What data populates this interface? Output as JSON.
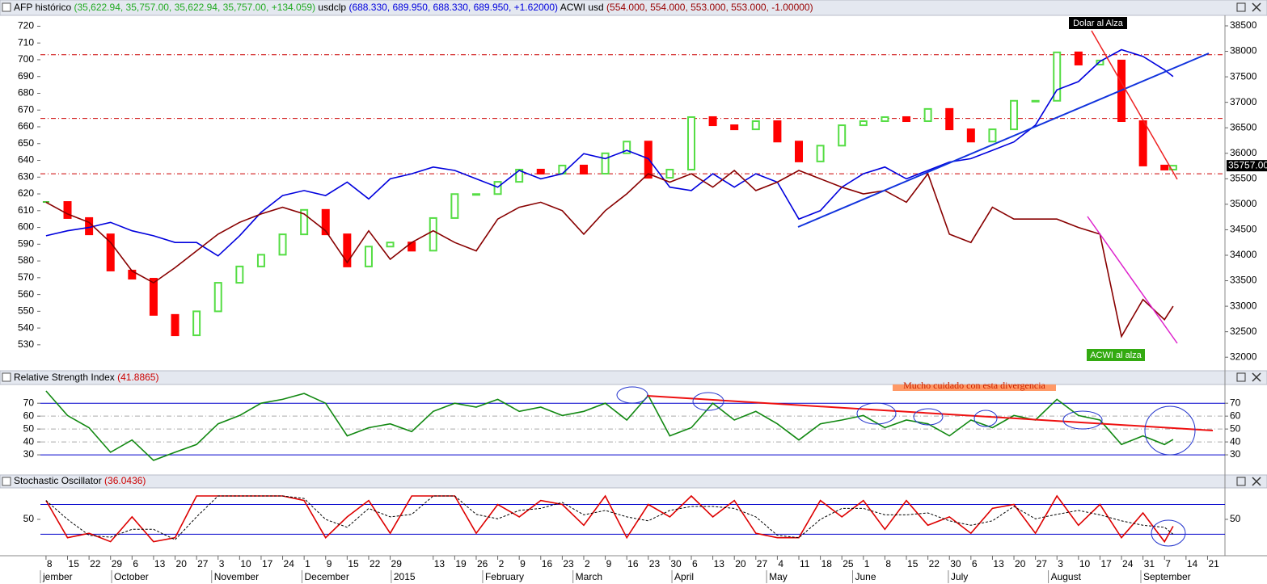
{
  "chart_data": [
    {
      "type": "line",
      "series": [
        {
          "name": "AFP histórico",
          "legend_values": "(35,622.94, 35,757.00, 35,622.94, 35,757.00, +134.059)",
          "style": "step-bars",
          "axis": "y2",
          "color": "#44bb33",
          "up_color": "#55dd44",
          "down_color": "#ff0000",
          "last_label": "35757.00",
          "values": [
            35045,
            34730,
            34410,
            33700,
            33540,
            32830,
            32430,
            32900,
            33460,
            33780,
            34010,
            34410,
            34890,
            34410,
            33780,
            34170,
            34250,
            34090,
            34730,
            35200,
            35200,
            35440,
            35680,
            35600,
            35760,
            35600,
            36000,
            36230,
            35520,
            35680,
            36710,
            36550,
            36470,
            36630,
            36230,
            35840,
            36150,
            36550,
            36630,
            36710,
            36630,
            36870,
            36470,
            36230,
            36470,
            37030,
            37030,
            37980,
            37740,
            37820,
            36630,
            35760,
            35680,
            35757
          ]
        },
        {
          "name": "usdclp",
          "legend_values": "(688.330, 689.950, 688.330, 689.950, +1.62000)",
          "color": "#0000dd",
          "values": [
            595,
            598,
            600,
            603,
            598,
            595,
            591,
            591,
            583,
            595,
            609,
            619,
            622,
            619,
            627,
            617,
            629,
            632,
            636,
            634,
            629,
            624,
            634,
            629,
            632,
            644,
            641,
            646,
            641,
            624,
            622,
            632,
            624,
            632,
            627,
            605,
            610,
            624,
            632,
            636,
            629,
            634,
            639,
            641,
            646,
            651,
            661,
            682,
            687,
            699,
            706,
            702,
            694,
            689.95
          ]
        },
        {
          "name": "ACWI usd",
          "legend_values": "(554.000, 554.000, 553.000, 553.000, -1.00000)",
          "color": "#880000",
          "values": [
            615,
            608,
            603,
            591,
            574,
            567,
            576,
            586,
            596,
            603,
            608,
            612,
            608,
            598,
            579,
            598,
            581,
            591,
            598,
            591,
            586,
            605,
            612,
            615,
            610,
            596,
            610,
            620,
            632,
            627,
            632,
            624,
            634,
            622,
            627,
            634,
            629,
            624,
            620,
            622,
            615,
            632,
            596,
            591,
            612,
            605,
            605,
            605,
            600,
            596,
            535,
            557,
            545,
            553
          ]
        }
      ],
      "x": [
        0,
        1,
        2,
        3,
        4,
        5,
        6,
        7,
        8,
        9,
        10,
        11,
        12,
        13,
        14,
        15,
        16,
        17,
        18,
        19,
        20,
        21,
        22,
        23,
        24,
        25,
        26,
        27,
        28,
        29,
        30,
        31,
        32,
        33,
        34,
        35,
        36,
        37,
        38,
        39,
        40,
        41,
        42,
        43,
        44,
        45,
        46,
        47,
        48,
        49,
        50,
        51,
        52,
        52.4
      ],
      "xlim": [
        -0.26,
        54.81
      ],
      "ylim": [
        515,
        726
      ],
      "yticks": [
        530,
        540,
        550,
        560,
        570,
        580,
        590,
        600,
        610,
        620,
        630,
        640,
        650,
        660,
        670,
        680,
        690,
        700,
        710,
        720
      ],
      "y2lim": [
        31750,
        38690
      ],
      "y2ticks": [
        32000,
        32500,
        33000,
        33500,
        34000,
        34500,
        35000,
        35500,
        36000,
        36500,
        37000,
        37500,
        38000,
        38500
      ],
      "reference_lines": [
        {
          "values": [
            703,
            665,
            632
          ],
          "color": "#cc0000",
          "dashed": true
        }
      ],
      "annotations": [
        "Dolar al Alza",
        "ACWI al alza"
      ]
    },
    {
      "type": "line",
      "title": "Relative Strength Index",
      "title_value": "(41.8865)",
      "series": [
        {
          "color": "#118811",
          "values": [
            79.5,
            60.5,
            51,
            32,
            41.5,
            25.7,
            32,
            38,
            54,
            60.5,
            70,
            73,
            77.6,
            70,
            44.7,
            51,
            54,
            48,
            63.7,
            70,
            67,
            73,
            63.7,
            67,
            60.5,
            63.7,
            70,
            57,
            76,
            44.7,
            51,
            70,
            57,
            63.7,
            54,
            41.5,
            54,
            57,
            60.5,
            51,
            57,
            54,
            44.7,
            57,
            51,
            60.5,
            57,
            73,
            60.5,
            57,
            38,
            44.7,
            38,
            41.8865
          ]
        }
      ],
      "x": [
        0,
        1,
        2,
        3,
        4,
        5,
        6,
        7,
        8,
        9,
        10,
        11,
        12,
        13,
        14,
        15,
        16,
        17,
        18,
        19,
        20,
        21,
        22,
        23,
        24,
        25,
        26,
        27,
        28,
        29,
        30,
        31,
        32,
        33,
        34,
        35,
        36,
        37,
        38,
        39,
        40,
        41,
        42,
        43,
        44,
        45,
        46,
        47,
        48,
        49,
        50,
        51,
        52,
        52.4
      ],
      "xlim": [
        -0.26,
        54.81
      ],
      "ylim": [
        19.4,
        83.9
      ],
      "yticks": [
        30,
        40,
        50,
        60,
        70
      ],
      "reference_lines": [
        {
          "values": [
            70,
            30
          ],
          "color": "#0000cc",
          "dashed": false
        },
        {
          "values": [
            60,
            50,
            40
          ],
          "color": "#aaaaaa",
          "dashed": true
        }
      ],
      "annotations": [
        "Mucho cuidado con esta divergencia"
      ]
    },
    {
      "type": "line",
      "title": "Stochastic Oscillator",
      "title_value": "(36.0436)",
      "series": [
        {
          "color": "#dd0000",
          "values": [
            88,
            13,
            22,
            5,
            55,
            5,
            13,
            97,
            97,
            97,
            97,
            97,
            88,
            13,
            55,
            88,
            22,
            97,
            97,
            97,
            22,
            80,
            55,
            88,
            80,
            38,
            97,
            13,
            80,
            55,
            97,
            55,
            88,
            22,
            13,
            13,
            88,
            55,
            88,
            30,
            88,
            38,
            55,
            22,
            72,
            80,
            22,
            97,
            38,
            80,
            13,
            63,
            5,
            36.0436
          ]
        },
        {
          "color": "#000000",
          "dashed": true,
          "values": [
            88,
            50,
            18,
            14,
            30,
            30,
            9,
            55,
            97,
            97,
            97,
            97,
            92,
            50,
            34,
            72,
            55,
            60,
            97,
            97,
            60,
            51,
            68,
            72,
            84,
            59,
            68,
            55,
            47,
            68,
            76,
            76,
            72,
            55,
            18,
            13,
            50,
            72,
            72,
            59,
            59,
            63,
            47,
            38,
            47,
            76,
            51,
            60,
            68,
            59,
            47,
            38,
            34,
            20
          ]
        }
      ],
      "x": [
        0,
        1,
        2,
        3,
        4,
        5,
        6,
        7,
        8,
        9,
        10,
        11,
        12,
        13,
        14,
        15,
        16,
        17,
        18,
        19,
        20,
        21,
        22,
        23,
        24,
        25,
        26,
        27,
        28,
        29,
        30,
        31,
        32,
        33,
        34,
        35,
        36,
        37,
        38,
        39,
        40,
        41,
        42,
        43,
        44,
        45,
        46,
        47,
        48,
        49,
        50,
        51,
        52,
        52.4
      ],
      "xlim": [
        -0.26,
        54.81
      ],
      "ylim": [
        -16.7,
        111.7
      ],
      "yticks": [
        50
      ],
      "reference_lines": [
        {
          "values": [
            80,
            20
          ],
          "color": "#0000cc",
          "dashed": false
        }
      ],
      "xticks": [
        {
          "value": 0,
          "label": "8"
        },
        {
          "value": 1,
          "label": "15"
        },
        {
          "value": 2,
          "label": "22"
        },
        {
          "value": 3,
          "label": "29"
        },
        {
          "value": 4,
          "label": "6"
        },
        {
          "value": 5,
          "label": "13"
        },
        {
          "value": 6,
          "label": "20"
        },
        {
          "value": 7,
          "label": "27"
        },
        {
          "value": 8,
          "label": "3"
        },
        {
          "value": 9,
          "label": "10"
        },
        {
          "value": 10,
          "label": "17"
        },
        {
          "value": 11,
          "label": "24"
        },
        {
          "value": 12,
          "label": "1"
        },
        {
          "value": 13,
          "label": "9"
        },
        {
          "value": 14,
          "label": "15"
        },
        {
          "value": 15,
          "label": "22"
        },
        {
          "value": 16,
          "label": "29"
        },
        {
          "value": 18,
          "label": "13"
        },
        {
          "value": 19,
          "label": "19"
        },
        {
          "value": 20,
          "label": "26"
        },
        {
          "value": 21,
          "label": "2"
        },
        {
          "value": 22,
          "label": "9"
        },
        {
          "value": 23,
          "label": "16"
        },
        {
          "value": 24,
          "label": "23"
        },
        {
          "value": 25,
          "label": "2"
        },
        {
          "value": 26,
          "label": "9"
        },
        {
          "value": 27,
          "label": "16"
        },
        {
          "value": 28,
          "label": "23"
        },
        {
          "value": 29,
          "label": "30"
        },
        {
          "value": 30,
          "label": "6"
        },
        {
          "value": 31,
          "label": "13"
        },
        {
          "value": 32,
          "label": "20"
        },
        {
          "value": 33,
          "label": "27"
        },
        {
          "value": 34,
          "label": "4"
        },
        {
          "value": 35,
          "label": "11"
        },
        {
          "value": 36,
          "label": "18"
        },
        {
          "value": 37,
          "label": "25"
        },
        {
          "value": 38,
          "label": "1"
        },
        {
          "value": 39,
          "label": "8"
        },
        {
          "value": 40,
          "label": "15"
        },
        {
          "value": 41,
          "label": "22"
        },
        {
          "value": 42,
          "label": "30"
        },
        {
          "value": 43,
          "label": "6"
        },
        {
          "value": 44,
          "label": "13"
        },
        {
          "value": 45,
          "label": "20"
        },
        {
          "value": 46,
          "label": "27"
        },
        {
          "value": 47,
          "label": "3"
        },
        {
          "value": 48,
          "label": "10"
        },
        {
          "value": 49,
          "label": "17"
        },
        {
          "value": 50,
          "label": "24"
        },
        {
          "value": 51,
          "label": "31"
        },
        {
          "value": 52,
          "label": "7"
        },
        {
          "value": 53,
          "label": "14"
        },
        {
          "value": 54,
          "label": "21"
        }
      ],
      "month_labels": [
        {
          "value": -0.26,
          "label": "jember"
        },
        {
          "value": 3.05,
          "label": "October"
        },
        {
          "value": 7.7,
          "label": "November"
        },
        {
          "value": 11.9,
          "label": "December"
        },
        {
          "value": 16.05,
          "label": "2015"
        },
        {
          "value": 20.3,
          "label": "February"
        },
        {
          "value": 24.5,
          "label": "March"
        },
        {
          "value": 29.1,
          "label": "April"
        },
        {
          "value": 33.5,
          "label": "May"
        },
        {
          "value": 37.5,
          "label": "June"
        },
        {
          "value": 41.95,
          "label": "July"
        },
        {
          "value": 46.6,
          "label": "August"
        },
        {
          "value": 50.9,
          "label": "September"
        }
      ]
    }
  ]
}
